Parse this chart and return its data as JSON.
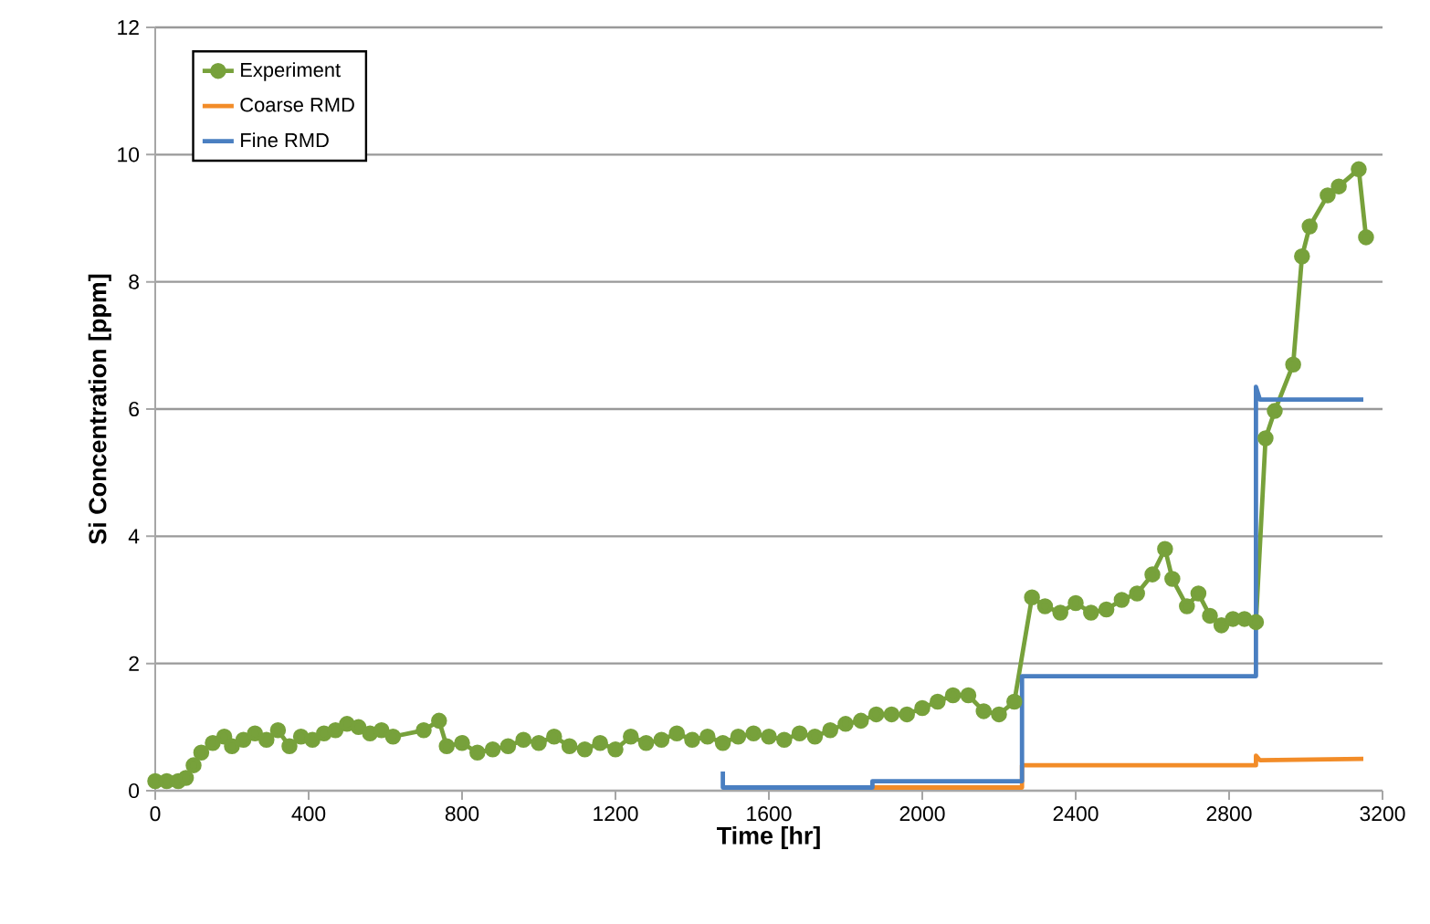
{
  "chart_data": {
    "type": "line",
    "xlabel": "Time [hr]",
    "ylabel": "Si Concentration [ppm]",
    "xlim": [
      0,
      3200
    ],
    "ylim": [
      0,
      12
    ],
    "xticks": [
      0,
      400,
      800,
      1200,
      1600,
      2000,
      2400,
      2800,
      3200
    ],
    "yticks": [
      0,
      2,
      4,
      6,
      8,
      10,
      12
    ],
    "grid": "y",
    "legend": "top left",
    "line_style": "solid",
    "series": [
      {
        "name": "Experiment",
        "color": "#77a13b",
        "marker": "circle",
        "x": [
          0,
          30,
          60,
          80,
          100,
          120,
          150,
          180,
          200,
          230,
          260,
          290,
          320,
          350,
          380,
          410,
          440,
          470,
          500,
          530,
          560,
          590,
          620,
          700,
          740,
          760,
          800,
          840,
          880,
          920,
          960,
          1000,
          1040,
          1080,
          1120,
          1160,
          1200,
          1240,
          1280,
          1320,
          1360,
          1400,
          1440,
          1480,
          1520,
          1560,
          1600,
          1640,
          1680,
          1720,
          1760,
          1800,
          1840,
          1880,
          1920,
          1960,
          2000,
          2040,
          2080,
          2120,
          2160,
          2200,
          2240,
          2286,
          2320,
          2360,
          2400,
          2440,
          2480,
          2520,
          2560,
          2600,
          2633,
          2652,
          2690,
          2720,
          2750,
          2780,
          2810,
          2840,
          2870,
          2895,
          2919,
          2967,
          2990,
          3010,
          3057,
          3086,
          3138,
          3157
        ],
        "values": [
          0.15,
          0.15,
          0.15,
          0.2,
          0.4,
          0.6,
          0.75,
          0.85,
          0.7,
          0.8,
          0.9,
          0.8,
          0.95,
          0.7,
          0.85,
          0.8,
          0.9,
          0.95,
          1.05,
          1.0,
          0.9,
          0.95,
          0.85,
          0.95,
          1.1,
          0.7,
          0.75,
          0.6,
          0.65,
          0.7,
          0.8,
          0.75,
          0.85,
          0.7,
          0.65,
          0.75,
          0.65,
          0.85,
          0.75,
          0.8,
          0.9,
          0.8,
          0.85,
          0.75,
          0.85,
          0.9,
          0.85,
          0.8,
          0.9,
          0.85,
          0.95,
          1.05,
          1.1,
          1.2,
          1.2,
          1.2,
          1.3,
          1.4,
          1.5,
          1.5,
          1.25,
          1.2,
          1.4,
          3.04,
          2.9,
          2.8,
          2.95,
          2.8,
          2.85,
          3.0,
          3.1,
          3.4,
          3.8,
          3.33,
          2.9,
          3.1,
          2.75,
          2.6,
          2.7,
          2.7,
          2.65,
          5.54,
          5.97,
          6.7,
          8.4,
          8.87,
          9.36,
          9.5,
          9.77,
          8.7
        ]
      },
      {
        "name": "Coarse RMD",
        "color": "#f28c28",
        "marker": "none",
        "x": [
          1870,
          2260,
          2260,
          2870,
          2870,
          2880,
          3150
        ],
        "values": [
          0.05,
          0.05,
          0.4,
          0.4,
          0.55,
          0.48,
          0.5
        ]
      },
      {
        "name": "Fine RMD",
        "color": "#4a7fc1",
        "marker": "none",
        "x": [
          1480,
          1480,
          1870,
          1870,
          2260,
          2260,
          2870,
          2870,
          2880,
          3150
        ],
        "values": [
          0.3,
          0.05,
          0.05,
          0.15,
          0.15,
          1.8,
          1.8,
          6.35,
          6.15,
          6.15
        ]
      }
    ]
  }
}
